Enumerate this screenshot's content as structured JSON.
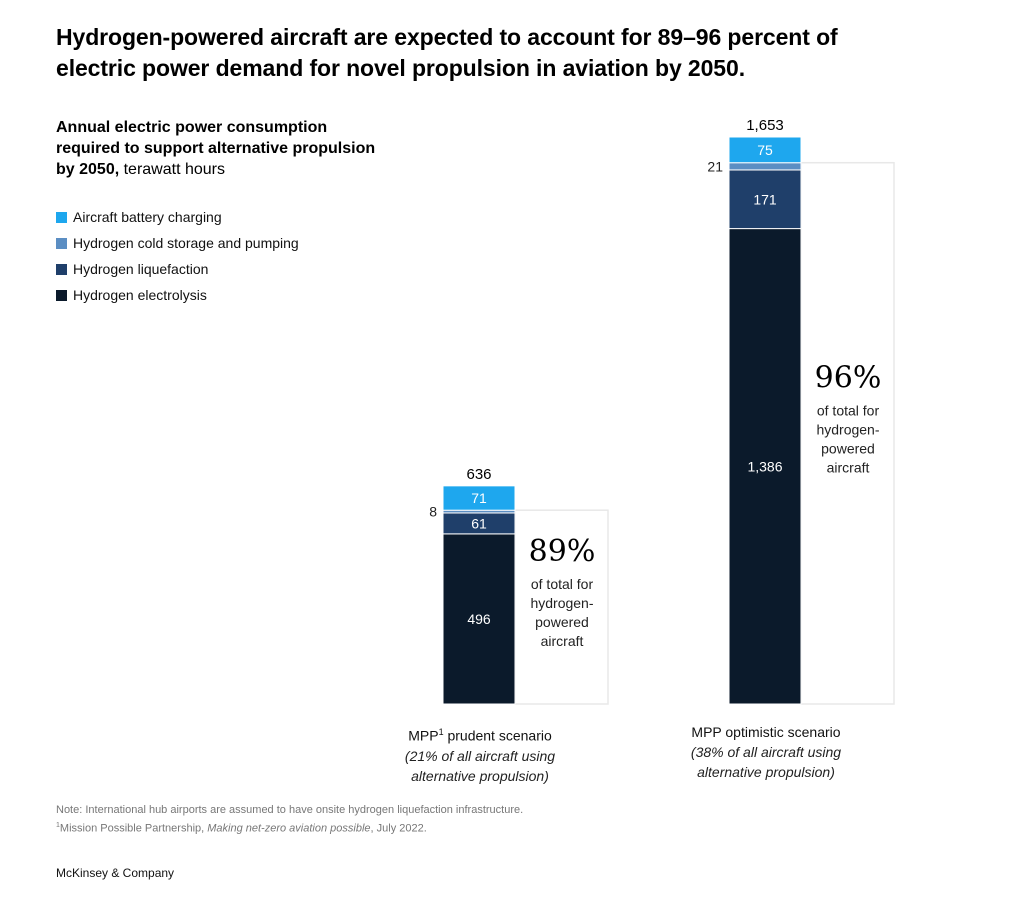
{
  "title_line1": "Hydrogen-powered aircraft are expected to account for 89–96 percent of",
  "title_line2": "electric power demand for novel propulsion in aviation by 2050.",
  "subtitle_bold": "Annual electric power consumption required to support alternative propulsion by 2050,",
  "subtitle_unit": "terawatt hours",
  "colors": {
    "battery": "#1ea7ee",
    "cold_storage": "#5b8ec3",
    "liquefaction": "#1f3f6a",
    "electrolysis": "#0b1a2b",
    "panel_border": "#e8e8e8"
  },
  "chart_data": {
    "type": "bar",
    "stacked": true,
    "unit": "terawatt hours",
    "categories": [
      "MPP prudent scenario",
      "MPP optimistic scenario"
    ],
    "series": [
      {
        "name": "Hydrogen electrolysis",
        "values": [
          496,
          1386
        ]
      },
      {
        "name": "Hydrogen liquefaction",
        "values": [
          61,
          171
        ]
      },
      {
        "name": "Hydrogen cold storage and pumping",
        "values": [
          8,
          21
        ]
      },
      {
        "name": "Aircraft battery charging",
        "values": [
          71,
          75
        ]
      }
    ],
    "totals": [
      "636",
      "1,653"
    ],
    "value_labels": [
      {
        "electrolysis": "496",
        "liquefaction": "61",
        "cold_storage": "8",
        "battery": "71"
      },
      {
        "electrolysis": "1,386",
        "liquefaction": "171",
        "cold_storage": "21",
        "battery": "75"
      }
    ],
    "hydrogen_share": [
      {
        "pct": "89%",
        "text_lines": [
          "of total for",
          "hydrogen-",
          "powered",
          "aircraft"
        ]
      },
      {
        "pct": "96%",
        "text_lines": [
          "of total for",
          "hydrogen-",
          "powered",
          "aircraft"
        ]
      }
    ]
  },
  "legend": [
    {
      "label": "Aircraft battery charging",
      "color": "#1ea7ee"
    },
    {
      "label": "Hydrogen cold storage and pumping",
      "color": "#5b8ec3"
    },
    {
      "label": "Hydrogen liquefaction",
      "color": "#1f3f6a"
    },
    {
      "label": "Hydrogen electrolysis",
      "color": "#0b1a2b"
    }
  ],
  "scenarios": [
    {
      "name": "MPP",
      "sup": "1",
      "name_rest": " prudent scenario",
      "desc1": "(21% of all aircraft using",
      "desc2": "alternative propulsion)"
    },
    {
      "name": "MPP optimistic scenario",
      "desc1": "(38% of all aircraft using",
      "desc2": "alternative propulsion)"
    }
  ],
  "note_line1": "Note: International hub airports are assumed to have onsite hydrogen liquefaction infrastructure.",
  "note_line2_sup": "1",
  "note_line2_a": "Mission Possible Partnership, ",
  "note_line2_italic": "Making net-zero aviation possible",
  "note_line2_b": ", July 2022.",
  "source": "McKinsey & Company"
}
